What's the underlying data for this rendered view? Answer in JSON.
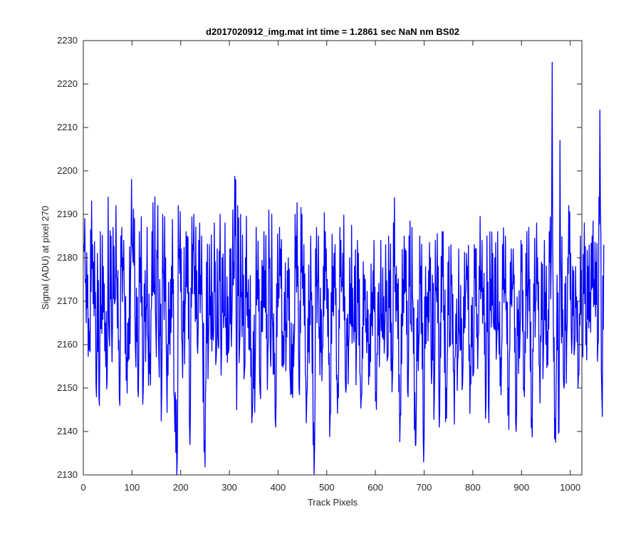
{
  "chart_data": {
    "type": "line",
    "title": "d2017020912_img.mat int time = 1.2861 sec  NaN nm BS02",
    "xlabel": "Track Pixels",
    "ylabel": "Signal (ADU) at pixel 270",
    "xlim": [
      0,
      1024
    ],
    "ylim": [
      2130,
      2230
    ],
    "xticks": [
      "0",
      "100",
      "200",
      "300",
      "400",
      "500",
      "600",
      "700",
      "800",
      "900",
      "1000"
    ],
    "yticks": [
      "2130",
      "2140",
      "2150",
      "2160",
      "2170",
      "2180",
      "2190",
      "2200",
      "2210",
      "2220",
      "2230"
    ],
    "grid": false,
    "series": [
      {
        "color": "#0000ff",
        "x_start": 1,
        "x_step": 8,
        "values": [
          2183,
          2176,
          2193,
          2172,
          2146,
          2178,
          2152,
          2185,
          2170,
          2161,
          2180,
          2157,
          2176,
          2189,
          2148,
          2171,
          2168,
          2158,
          2174,
          2192,
          2149,
          2180,
          2168,
          2175,
          2134,
          2182,
          2169,
          2172,
          2183,
          2177,
          2176,
          2138,
          2160,
          2172,
          2157,
          2190,
          2167,
          2171,
          2165,
          2198,
          2160,
          2176,
          2172,
          2159,
          2154,
          2175,
          2178,
          2167,
          2155,
          2158,
          2174,
          2163,
          2165,
          2152,
          2160,
          2178,
          2190,
          2152,
          2170,
          2142,
          2174,
          2168,
          2186,
          2158,
          2178,
          2153,
          2184,
          2171,
          2160,
          2173,
          2160,
          2152,
          2176,
          2168,
          2172,
          2149,
          2163,
          2171,
          2157,
          2165,
          2176,
          2153,
          2175,
          2170,
          2165,
          2149,
          2160,
          2165,
          2171,
          2180,
          2148,
          2178,
          2186,
          2150,
          2163,
          2154,
          2157,
          2166,
          2172,
          2160,
          2153,
          2167,
          2177,
          2165,
          2142,
          2181,
          2160,
          2157,
          2175,
          2150,
          2174,
          2140,
          2162,
          2150,
          2171,
          2143,
          2170,
          2155,
          2158,
          2163,
          2180,
          2143,
          2140,
          2168,
          2162,
          2181,
          2159,
          2153,
          2160,
          2165,
          2172,
          2175,
          2160,
          2148
        ]
      },
      {
        "color": "#0000ff",
        "x_start": 5,
        "x_step": 8,
        "values": [
          2175,
          2163,
          2179,
          2181,
          2169,
          2165,
          2162,
          2187,
          2175,
          2185,
          2170,
          2166,
          2182,
          2173,
          2180,
          2174,
          2161,
          2186,
          2163,
          2175,
          2176,
          2160,
          2178,
          2149,
          2182,
          2170,
          2185,
          2173,
          2178,
          2184,
          2165,
          2179,
          2171,
          2188,
          2160,
          2180,
          2166,
          2182,
          2179,
          2192,
          2172,
          2180,
          2168,
          2163,
          2177,
          2170,
          2177,
          2191,
          2164,
          2174,
          2182,
          2172,
          2180,
          2160,
          2185,
          2170,
          2183,
          2166,
          2172,
          2182,
          2164,
          2178,
          2175,
          2172,
          2183,
          2168,
          2181,
          2166,
          2174,
          2178,
          2181,
          2164,
          2166,
          2167,
          2184,
          2172,
          2167,
          2183,
          2177,
          2188,
          2174,
          2167,
          2182,
          2185,
          2170,
          2166,
          2178,
          2171,
          2177,
          2176,
          2173,
          2165,
          2169,
          2179,
          2176,
          2167,
          2162,
          2171,
          2178,
          2169,
          2182,
          2178,
          2173,
          2185,
          2175,
          2180,
          2165,
          2183,
          2170,
          2179,
          2176,
          2168,
          2183,
          2181,
          2175,
          2174,
          2180,
          2179,
          2172,
          2186,
          2170,
          2176,
          2175,
          2174,
          2192,
          2178,
          2171,
          2185,
          2188,
          2178,
          2185,
          2179,
          2214,
          2183
        ]
      },
      {
        "color": "#0000ff",
        "x_start": 3,
        "x_step": 16,
        "values": [
          2189,
          2183,
          2186,
          2194,
          2192,
          2184,
          2198,
          2186,
          2187,
          2194,
          2190,
          2175,
          2192,
          2186,
          2190,
          2185,
          2183,
          2182,
          2188,
          2191,
          2190,
          2175,
          2187,
          2186,
          2190,
          2187,
          2177,
          2190,
          2178,
          2185,
          2185,
          2182,
          2181,
          2175,
          2180,
          2184,
          2175,
          2177,
          2184,
          2185,
          2178,
          2185,
          2187,
          2185,
          2172,
          2184,
          2186,
          2183,
          2182,
          2181,
          2183,
          2184,
          2186,
          2186,
          2185,
          2182,
          2184,
          2187,
          2188,
          2184,
          2225,
          2207,
          2180,
          2178
        ]
      },
      {
        "color": "#0000ff",
        "x_start": 11,
        "x_step": 16,
        "values": [
          2166,
          2148,
          2174,
          2156,
          2146,
          2165,
          2159,
          2149,
          2168,
          2157,
          2154,
          2148,
          2160,
          2137,
          2158,
          2149,
          2161,
          2153,
          2159,
          2145,
          2154,
          2144,
          2149,
          2158,
          2141,
          2162,
          2165,
          2150,
          2148,
          2136,
          2159,
          2144,
          2151,
          2149,
          2164,
          2148,
          2160,
          2158,
          2162,
          2153,
          2144,
          2148,
          2137,
          2133,
          2151,
          2141,
          2154,
          2157,
          2151,
          2155,
          2162,
          2146,
          2164,
          2158,
          2157,
          2171,
          2163,
          2159,
          2162,
          2168,
          2150,
          2150,
          2158,
          2167
        ]
      }
    ]
  }
}
